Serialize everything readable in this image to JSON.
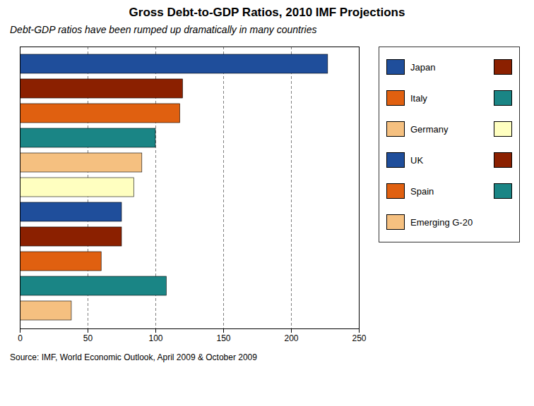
{
  "chart_data": {
    "type": "bar",
    "orientation": "horizontal",
    "title": "Gross Debt-to-GDP Ratios, 2010 IMF Projections",
    "subtitle": "Debt-GDP ratios have been rumped up dramatically in many countries",
    "source": "Source: IMF, World Economic Outlook, April 2009 & October 2009",
    "categories": [
      null,
      null,
      null,
      null,
      null,
      null,
      null,
      null,
      null,
      null,
      null
    ],
    "values": [
      38,
      108,
      60,
      75,
      75,
      84,
      90,
      100,
      118,
      120,
      227
    ],
    "colors": [
      "#F5C080",
      "#1A8585",
      "#E06010",
      "#8B2000",
      "#1F4E9B",
      "#FFFFC0",
      "#F5C080",
      "#1A8585",
      "#E06010",
      "#8B2000",
      "#1F4E9B"
    ],
    "xlim": [
      0,
      250
    ],
    "xticks": [
      0,
      50,
      100,
      150,
      200,
      250
    ],
    "grid": true,
    "tick_labels": "x",
    "legend": "right",
    "legend_entries": [
      {
        "label": "Japan",
        "colors": [
          "#1F4E9B",
          "#8B2000"
        ]
      },
      {
        "label": "Italy",
        "colors": [
          "#E06010",
          "#1A8585"
        ]
      },
      {
        "label": "Germany",
        "colors": [
          "#F5C080",
          "#FFFFC0"
        ]
      },
      {
        "label": "UK",
        "colors": [
          "#1F4E9B",
          "#8B2000"
        ]
      },
      {
        "label": "Spain",
        "colors": [
          "#E06010",
          "#1A8585"
        ]
      },
      {
        "label": "Emerging G-20",
        "colors": [
          "#F5C080"
        ]
      }
    ]
  }
}
